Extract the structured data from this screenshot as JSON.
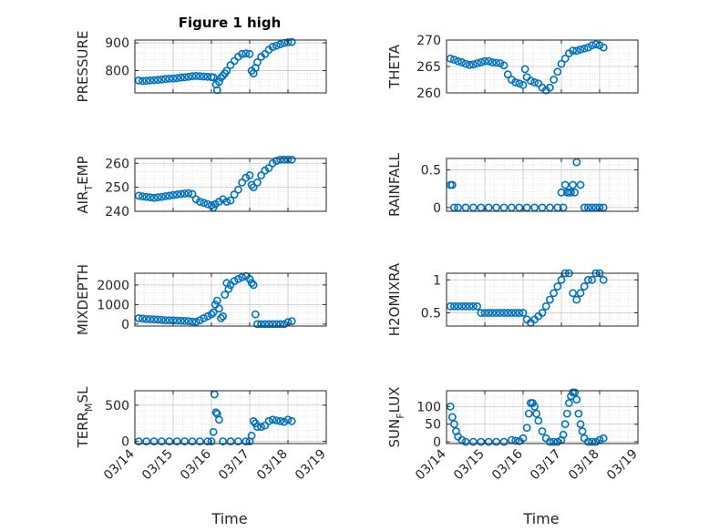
{
  "figure": {
    "title": "Figure 1 high",
    "xlabel": "Time"
  },
  "chart_data": [
    {
      "type": "scatter",
      "ylabel": "PRESSURE",
      "ylim": [
        720,
        910
      ],
      "yticks": [
        800,
        900
      ],
      "xlim": [
        0,
        5
      ],
      "xticks": [
        "03/14",
        "03/15",
        "03/16",
        "03/17",
        "03/18",
        "03/19"
      ],
      "x": [
        0.1,
        0.2,
        0.3,
        0.4,
        0.5,
        0.6,
        0.7,
        0.8,
        0.9,
        1.0,
        1.1,
        1.2,
        1.3,
        1.4,
        1.5,
        1.6,
        1.7,
        1.8,
        1.9,
        2.0,
        2.05,
        2.12,
        2.15,
        2.2,
        2.25,
        2.3,
        2.35,
        2.4,
        2.5,
        2.6,
        2.7,
        2.8,
        2.9,
        3.0,
        3.05,
        3.1,
        3.15,
        3.2,
        3.3,
        3.4,
        3.5,
        3.6,
        3.7,
        3.8,
        3.9,
        4.0,
        4.1
      ],
      "y": [
        765,
        763,
        764,
        765,
        766,
        767,
        768,
        770,
        771,
        772,
        773,
        775,
        776,
        778,
        780,
        781,
        780,
        779,
        778,
        777,
        776,
        750,
        730,
        760,
        775,
        782,
        790,
        800,
        820,
        835,
        850,
        860,
        862,
        860,
        800,
        790,
        810,
        830,
        850,
        860,
        875,
        885,
        890,
        895,
        900,
        902,
        903
      ]
    },
    {
      "type": "scatter",
      "ylabel": "THETA",
      "ylim": [
        260,
        270
      ],
      "yticks": [
        260,
        265,
        270
      ],
      "xlim": [
        0,
        5
      ],
      "xticks": [
        "03/14",
        "03/15",
        "03/16",
        "03/17",
        "03/18",
        "03/19"
      ],
      "x": [
        0.1,
        0.2,
        0.3,
        0.4,
        0.5,
        0.6,
        0.7,
        0.8,
        0.9,
        1.0,
        1.1,
        1.2,
        1.3,
        1.4,
        1.5,
        1.6,
        1.7,
        1.8,
        1.9,
        2.0,
        2.05,
        2.1,
        2.2,
        2.3,
        2.4,
        2.5,
        2.6,
        2.7,
        2.8,
        2.9,
        3.0,
        3.1,
        3.2,
        3.3,
        3.4,
        3.5,
        3.6,
        3.7,
        3.8,
        3.9,
        4.0,
        4.1
      ],
      "y": [
        266.5,
        266.3,
        266,
        265.8,
        265.5,
        265.3,
        265.4,
        265.6,
        265.8,
        266,
        266,
        265.8,
        265.7,
        265.6,
        265.2,
        263.5,
        262.5,
        262,
        261.8,
        261.5,
        264.5,
        263,
        262.3,
        262,
        261.8,
        261,
        260.5,
        261,
        262.5,
        264,
        265.5,
        266.5,
        267.5,
        268,
        268,
        268.2,
        268.4,
        268.6,
        269,
        269.2,
        269,
        268.6
      ]
    },
    {
      "type": "scatter",
      "ylabel": "AIR_TEMP",
      "ylim": [
        240,
        262
      ],
      "yticks": [
        240,
        250,
        260
      ],
      "xlim": [
        0,
        5
      ],
      "xticks": [
        "03/14",
        "03/15",
        "03/16",
        "03/17",
        "03/18",
        "03/19"
      ],
      "x": [
        0.1,
        0.2,
        0.3,
        0.4,
        0.5,
        0.6,
        0.7,
        0.8,
        0.9,
        1.0,
        1.1,
        1.2,
        1.3,
        1.4,
        1.5,
        1.6,
        1.7,
        1.8,
        1.9,
        2.0,
        2.05,
        2.1,
        2.2,
        2.3,
        2.4,
        2.5,
        2.6,
        2.7,
        2.8,
        2.9,
        3.0,
        3.05,
        3.1,
        3.2,
        3.3,
        3.4,
        3.5,
        3.6,
        3.7,
        3.8,
        3.9,
        4.0,
        4.1
      ],
      "y": [
        246.5,
        246.2,
        246,
        245.8,
        245.6,
        245.8,
        246,
        246.3,
        246.5,
        246.8,
        247,
        247.2,
        247.4,
        247.5,
        247.2,
        245,
        244,
        243.5,
        243,
        242.5,
        241.5,
        243,
        244,
        245,
        244,
        244.5,
        247,
        249,
        252,
        254,
        255,
        251,
        250,
        252,
        255,
        257,
        258,
        260,
        261,
        261.5,
        261.5,
        261.5,
        261.5
      ]
    },
    {
      "type": "scatter",
      "ylabel": "RAINFALL",
      "ylim": [
        -0.05,
        0.65
      ],
      "yticks": [
        0,
        0.5
      ],
      "xlim": [
        0,
        5
      ],
      "xticks": [
        "03/14",
        "03/15",
        "03/16",
        "03/17",
        "03/18",
        "03/19"
      ],
      "x": [
        0.1,
        0.15,
        0.2,
        0.3,
        0.5,
        0.7,
        0.9,
        1.1,
        1.3,
        1.5,
        1.7,
        1.9,
        2.1,
        2.3,
        2.5,
        2.7,
        2.9,
        3.0,
        3.05,
        3.1,
        3.15,
        3.2,
        3.25,
        3.3,
        3.35,
        3.4,
        3.5,
        3.6,
        3.7,
        3.8,
        3.9,
        4.0,
        4.1
      ],
      "y": [
        0.3,
        0.3,
        0,
        0,
        0,
        0,
        0,
        0,
        0,
        0,
        0,
        0,
        0,
        0,
        0,
        0,
        0,
        0.2,
        0,
        0.3,
        0.2,
        0.2,
        0.2,
        0.3,
        0.2,
        0.6,
        0.3,
        0,
        0,
        0,
        0,
        0,
        0
      ]
    },
    {
      "type": "scatter",
      "ylabel": "MIXDEPTH",
      "ylim": [
        -100,
        2600
      ],
      "yticks": [
        0,
        1000,
        2000
      ],
      "xlim": [
        0,
        5
      ],
      "xticks": [
        "03/14",
        "03/15",
        "03/16",
        "03/17",
        "03/18",
        "03/19"
      ],
      "x": [
        0.1,
        0.2,
        0.3,
        0.4,
        0.5,
        0.6,
        0.7,
        0.8,
        0.9,
        1.0,
        1.1,
        1.2,
        1.3,
        1.4,
        1.5,
        1.6,
        1.7,
        1.8,
        1.9,
        2.0,
        2.05,
        2.1,
        2.15,
        2.2,
        2.25,
        2.3,
        2.35,
        2.4,
        2.45,
        2.5,
        2.6,
        2.7,
        2.8,
        2.9,
        3.0,
        3.05,
        3.1,
        3.15,
        3.2,
        3.3,
        3.4,
        3.5,
        3.6,
        3.7,
        3.8,
        3.9,
        4.0,
        4.1
      ],
      "y": [
        300,
        280,
        260,
        250,
        240,
        230,
        220,
        200,
        200,
        190,
        180,
        170,
        160,
        150,
        130,
        120,
        200,
        300,
        400,
        500,
        600,
        1000,
        1200,
        800,
        300,
        400,
        1500,
        2100,
        1800,
        2000,
        2200,
        2300,
        2400,
        2450,
        2300,
        2100,
        2000,
        500,
        0,
        0,
        0,
        0,
        0,
        0,
        0,
        0,
        100,
        150
      ]
    },
    {
      "type": "scatter",
      "ylabel": "H2OMIXRA",
      "ylim": [
        0.3,
        1.1
      ],
      "yticks": [
        0.5,
        1
      ],
      "xlim": [
        0,
        5
      ],
      "xticks": [
        "03/14",
        "03/15",
        "03/16",
        "03/17",
        "03/18",
        "03/19"
      ],
      "x": [
        0.1,
        0.2,
        0.3,
        0.4,
        0.5,
        0.6,
        0.7,
        0.8,
        0.9,
        1.0,
        1.1,
        1.2,
        1.3,
        1.4,
        1.5,
        1.6,
        1.7,
        1.8,
        1.9,
        2.0,
        2.1,
        2.2,
        2.3,
        2.4,
        2.5,
        2.6,
        2.7,
        2.8,
        2.9,
        3.0,
        3.1,
        3.2,
        3.3,
        3.4,
        3.5,
        3.6,
        3.7,
        3.8,
        3.9,
        4.0,
        4.1
      ],
      "y": [
        0.6,
        0.6,
        0.6,
        0.6,
        0.6,
        0.6,
        0.6,
        0.6,
        0.5,
        0.5,
        0.5,
        0.5,
        0.5,
        0.5,
        0.5,
        0.5,
        0.5,
        0.5,
        0.5,
        0.5,
        0.4,
        0.35,
        0.4,
        0.45,
        0.5,
        0.6,
        0.7,
        0.8,
        0.9,
        1.0,
        1.1,
        1.1,
        0.8,
        0.7,
        0.8,
        0.9,
        1.0,
        1.0,
        1.1,
        1.1,
        1.0
      ]
    },
    {
      "type": "scatter",
      "ylabel": "TERR_MSL",
      "ylim": [
        -30,
        700
      ],
      "yticks": [
        0,
        500
      ],
      "xlim": [
        0,
        5
      ],
      "xticks": [
        "03/14",
        "03/15",
        "03/16",
        "03/17",
        "03/18",
        "03/19"
      ],
      "x": [
        0.1,
        0.3,
        0.5,
        0.7,
        0.9,
        1.1,
        1.3,
        1.5,
        1.7,
        1.9,
        2.0,
        2.05,
        2.08,
        2.12,
        2.15,
        2.2,
        2.3,
        2.5,
        2.7,
        2.9,
        3.0,
        3.05,
        3.1,
        3.15,
        3.2,
        3.3,
        3.4,
        3.5,
        3.6,
        3.7,
        3.8,
        3.9,
        4.0,
        4.1
      ],
      "y": [
        0,
        0,
        0,
        0,
        0,
        0,
        0,
        0,
        0,
        0,
        0,
        130,
        650,
        400,
        380,
        300,
        0,
        0,
        0,
        0,
        0,
        80,
        280,
        250,
        200,
        200,
        220,
        280,
        300,
        290,
        280,
        270,
        300,
        280
      ]
    },
    {
      "type": "scatter",
      "ylabel": "SUN_FLUX",
      "ylim": [
        -5,
        145
      ],
      "yticks": [
        0,
        50,
        100
      ],
      "xlim": [
        0,
        5
      ],
      "xticks": [
        "03/14",
        "03/15",
        "03/16",
        "03/17",
        "03/18",
        "03/19"
      ],
      "x": [
        0.1,
        0.15,
        0.2,
        0.25,
        0.3,
        0.4,
        0.5,
        0.7,
        0.9,
        1.1,
        1.3,
        1.5,
        1.7,
        1.8,
        1.9,
        2.0,
        2.1,
        2.15,
        2.2,
        2.25,
        2.3,
        2.35,
        2.4,
        2.5,
        2.6,
        2.7,
        2.8,
        2.9,
        3.0,
        3.05,
        3.1,
        3.15,
        3.2,
        3.25,
        3.3,
        3.35,
        3.4,
        3.45,
        3.5,
        3.55,
        3.6,
        3.7,
        3.8,
        3.9,
        4.0,
        4.1
      ],
      "y": [
        100,
        70,
        50,
        30,
        15,
        5,
        0,
        0,
        0,
        0,
        0,
        0,
        5,
        3,
        2,
        10,
        40,
        80,
        110,
        110,
        100,
        80,
        60,
        30,
        10,
        0,
        0,
        0,
        5,
        20,
        50,
        80,
        110,
        130,
        140,
        140,
        120,
        80,
        50,
        30,
        10,
        0,
        0,
        0,
        5,
        10
      ]
    }
  ]
}
